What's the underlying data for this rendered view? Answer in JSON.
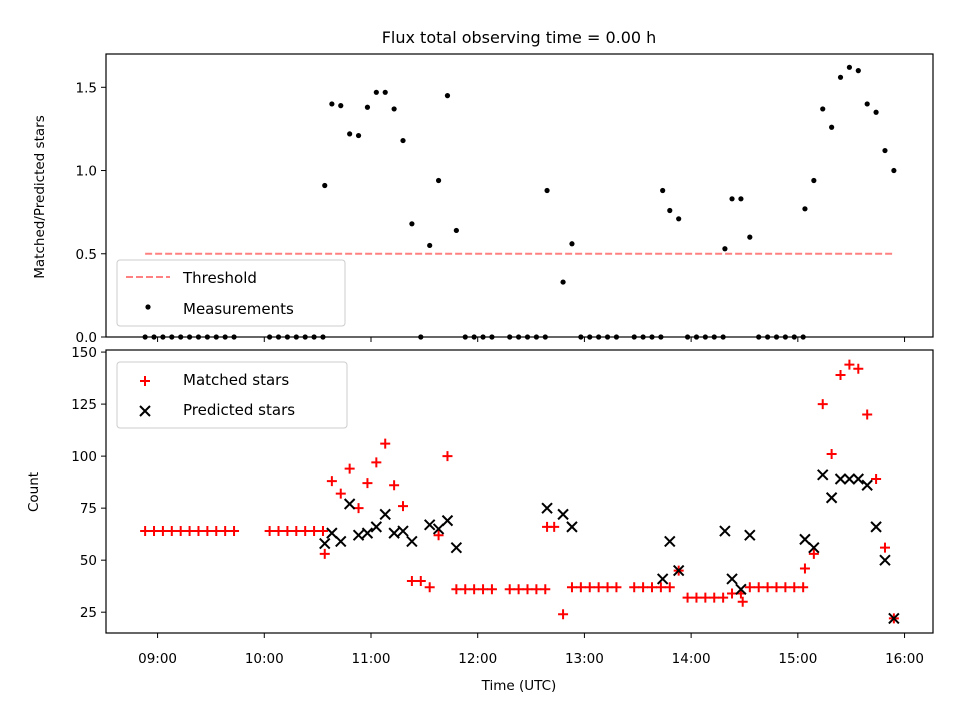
{
  "chart_data": [
    {
      "type": "scatter",
      "title": "Flux total observing time = 0.00 h",
      "xlabel": "",
      "ylabel": "Matched/Predicted stars",
      "xlim": [
        "08:31",
        "16:16"
      ],
      "ylim": [
        0,
        1.7
      ],
      "yticks": [
        0.0,
        0.5,
        1.0,
        1.5
      ],
      "ytick_labels": [
        "0.0",
        "0.5",
        "1.0",
        "1.5"
      ],
      "grid": false,
      "legend_position": "lower-left",
      "threshold": {
        "name": "Threshold",
        "x": [
          "08:53",
          "15:54"
        ],
        "y": 0.5,
        "color": "#ff8080"
      },
      "series": [
        {
          "name": "Measurements",
          "color": "#000000",
          "points": [
            [
              "08:53",
              0
            ],
            [
              "08:58",
              0
            ],
            [
              "09:03",
              0
            ],
            [
              "09:08",
              0
            ],
            [
              "09:13",
              0
            ],
            [
              "09:18",
              0
            ],
            [
              "09:23",
              0
            ],
            [
              "09:28",
              0
            ],
            [
              "09:33",
              0
            ],
            [
              "09:38",
              0
            ],
            [
              "09:43",
              0
            ],
            [
              "10:03",
              0
            ],
            [
              "10:08",
              0
            ],
            [
              "10:13",
              0
            ],
            [
              "10:18",
              0
            ],
            [
              "10:23",
              0
            ],
            [
              "10:28",
              0
            ],
            [
              "10:33",
              0
            ],
            [
              "10:34",
              0.91
            ],
            [
              "10:38",
              1.4
            ],
            [
              "10:43",
              1.39
            ],
            [
              "10:48",
              1.22
            ],
            [
              "10:53",
              1.21
            ],
            [
              "10:58",
              1.38
            ],
            [
              "11:03",
              1.47
            ],
            [
              "11:08",
              1.47
            ],
            [
              "11:13",
              1.37
            ],
            [
              "11:18",
              1.18
            ],
            [
              "11:23",
              0.68
            ],
            [
              "11:28",
              0
            ],
            [
              "11:33",
              0.55
            ],
            [
              "11:38",
              0.94
            ],
            [
              "11:43",
              1.45
            ],
            [
              "11:48",
              0.64
            ],
            [
              "11:53",
              0
            ],
            [
              "11:58",
              0
            ],
            [
              "12:03",
              0
            ],
            [
              "12:08",
              0
            ],
            [
              "12:18",
              0
            ],
            [
              "12:23",
              0
            ],
            [
              "12:28",
              0
            ],
            [
              "12:33",
              0
            ],
            [
              "12:38",
              0
            ],
            [
              "12:39",
              0.88
            ],
            [
              "12:48",
              0.33
            ],
            [
              "12:53",
              0.56
            ],
            [
              "12:58",
              0
            ],
            [
              "13:03",
              0
            ],
            [
              "13:08",
              0
            ],
            [
              "13:13",
              0
            ],
            [
              "13:18",
              0
            ],
            [
              "13:28",
              0
            ],
            [
              "13:33",
              0
            ],
            [
              "13:38",
              0
            ],
            [
              "13:43",
              0
            ],
            [
              "13:44",
              0.88
            ],
            [
              "13:48",
              0.76
            ],
            [
              "13:53",
              0.71
            ],
            [
              "13:58",
              0
            ],
            [
              "14:03",
              0
            ],
            [
              "14:08",
              0
            ],
            [
              "14:13",
              0
            ],
            [
              "14:18",
              0
            ],
            [
              "14:19",
              0.53
            ],
            [
              "14:23",
              0.83
            ],
            [
              "14:28",
              0.83
            ],
            [
              "14:33",
              0.6
            ],
            [
              "14:38",
              0
            ],
            [
              "14:43",
              0
            ],
            [
              "14:48",
              0
            ],
            [
              "14:53",
              0
            ],
            [
              "14:58",
              0
            ],
            [
              "15:03",
              0
            ],
            [
              "15:04",
              0.77
            ],
            [
              "15:09",
              0.94
            ],
            [
              "15:14",
              1.37
            ],
            [
              "15:19",
              1.26
            ],
            [
              "15:24",
              1.56
            ],
            [
              "15:29",
              1.62
            ],
            [
              "15:34",
              1.6
            ],
            [
              "15:39",
              1.4
            ],
            [
              "15:44",
              1.35
            ],
            [
              "15:49",
              1.12
            ],
            [
              "15:54",
              1.0
            ]
          ]
        }
      ]
    },
    {
      "type": "scatter",
      "title": "",
      "xlabel": "Time (UTC)",
      "ylabel": "Count",
      "xlim": [
        "08:31",
        "16:16"
      ],
      "ylim": [
        15,
        151
      ],
      "xticks": [
        "09:00",
        "10:00",
        "11:00",
        "12:00",
        "13:00",
        "14:00",
        "15:00",
        "16:00"
      ],
      "yticks": [
        25,
        50,
        75,
        100,
        125,
        150
      ],
      "ytick_labels": [
        "25",
        "50",
        "75",
        "100",
        "125",
        "150"
      ],
      "grid": false,
      "legend_position": "upper-left",
      "series": [
        {
          "name": "Matched stars",
          "marker": "plus",
          "color": "#ff0000",
          "points": [
            [
              "08:53",
              64
            ],
            [
              "08:58",
              64
            ],
            [
              "09:03",
              64
            ],
            [
              "09:08",
              64
            ],
            [
              "09:13",
              64
            ],
            [
              "09:18",
              64
            ],
            [
              "09:23",
              64
            ],
            [
              "09:28",
              64
            ],
            [
              "09:33",
              64
            ],
            [
              "09:38",
              64
            ],
            [
              "09:43",
              64
            ],
            [
              "10:03",
              64
            ],
            [
              "10:08",
              64
            ],
            [
              "10:13",
              64
            ],
            [
              "10:18",
              64
            ],
            [
              "10:23",
              64
            ],
            [
              "10:28",
              64
            ],
            [
              "10:33",
              64
            ],
            [
              "10:34",
              53
            ],
            [
              "10:38",
              88
            ],
            [
              "10:43",
              82
            ],
            [
              "10:48",
              94
            ],
            [
              "10:53",
              75
            ],
            [
              "10:58",
              87
            ],
            [
              "11:03",
              97
            ],
            [
              "11:08",
              106
            ],
            [
              "11:13",
              86
            ],
            [
              "11:18",
              76
            ],
            [
              "11:23",
              40
            ],
            [
              "11:28",
              40
            ],
            [
              "11:33",
              37
            ],
            [
              "11:38",
              62
            ],
            [
              "11:43",
              100
            ],
            [
              "11:48",
              36
            ],
            [
              "11:53",
              36
            ],
            [
              "11:58",
              36
            ],
            [
              "12:03",
              36
            ],
            [
              "12:08",
              36
            ],
            [
              "12:18",
              36
            ],
            [
              "12:23",
              36
            ],
            [
              "12:28",
              36
            ],
            [
              "12:33",
              36
            ],
            [
              "12:38",
              36
            ],
            [
              "12:39",
              66
            ],
            [
              "12:43",
              66
            ],
            [
              "12:48",
              24
            ],
            [
              "12:53",
              37
            ],
            [
              "12:58",
              37
            ],
            [
              "13:03",
              37
            ],
            [
              "13:08",
              37
            ],
            [
              "13:13",
              37
            ],
            [
              "13:18",
              37
            ],
            [
              "13:28",
              37
            ],
            [
              "13:33",
              37
            ],
            [
              "13:38",
              37
            ],
            [
              "13:43",
              37
            ],
            [
              "13:48",
              37
            ],
            [
              "13:53",
              45
            ],
            [
              "13:58",
              32
            ],
            [
              "14:03",
              32
            ],
            [
              "14:08",
              32
            ],
            [
              "14:13",
              32
            ],
            [
              "14:18",
              32
            ],
            [
              "14:23",
              34
            ],
            [
              "14:28",
              34
            ],
            [
              "14:29",
              30
            ],
            [
              "14:33",
              37
            ],
            [
              "14:38",
              37
            ],
            [
              "14:43",
              37
            ],
            [
              "14:48",
              37
            ],
            [
              "14:53",
              37
            ],
            [
              "14:58",
              37
            ],
            [
              "15:03",
              37
            ],
            [
              "15:04",
              46
            ],
            [
              "15:09",
              53
            ],
            [
              "15:14",
              125
            ],
            [
              "15:19",
              101
            ],
            [
              "15:24",
              139
            ],
            [
              "15:29",
              144
            ],
            [
              "15:34",
              142
            ],
            [
              "15:39",
              120
            ],
            [
              "15:44",
              89
            ],
            [
              "15:49",
              56
            ],
            [
              "15:54",
              22
            ]
          ]
        },
        {
          "name": "Predicted stars",
          "marker": "x",
          "color": "#000000",
          "points": [
            [
              "10:34",
              58
            ],
            [
              "10:38",
              63
            ],
            [
              "10:43",
              59
            ],
            [
              "10:48",
              77
            ],
            [
              "10:53",
              62
            ],
            [
              "10:58",
              63
            ],
            [
              "11:03",
              66
            ],
            [
              "11:08",
              72
            ],
            [
              "11:13",
              63
            ],
            [
              "11:18",
              64
            ],
            [
              "11:23",
              59
            ],
            [
              "11:33",
              67
            ],
            [
              "11:38",
              65
            ],
            [
              "11:43",
              69
            ],
            [
              "11:48",
              56
            ],
            [
              "12:39",
              75
            ],
            [
              "12:48",
              72
            ],
            [
              "12:53",
              66
            ],
            [
              "13:44",
              41
            ],
            [
              "13:48",
              59
            ],
            [
              "13:53",
              45
            ],
            [
              "14:19",
              64
            ],
            [
              "14:23",
              41
            ],
            [
              "14:28",
              36
            ],
            [
              "14:33",
              62
            ],
            [
              "15:04",
              60
            ],
            [
              "15:09",
              56
            ],
            [
              "15:14",
              91
            ],
            [
              "15:19",
              80
            ],
            [
              "15:24",
              89
            ],
            [
              "15:29",
              89
            ],
            [
              "15:34",
              89
            ],
            [
              "15:39",
              86
            ],
            [
              "15:44",
              66
            ],
            [
              "15:49",
              50
            ],
            [
              "15:54",
              22
            ]
          ]
        }
      ]
    }
  ]
}
